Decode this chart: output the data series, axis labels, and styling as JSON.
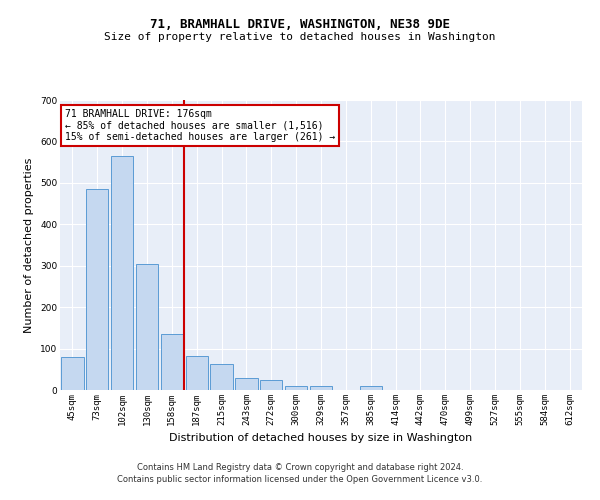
{
  "title": "71, BRAMHALL DRIVE, WASHINGTON, NE38 9DE",
  "subtitle": "Size of property relative to detached houses in Washington",
  "xlabel": "Distribution of detached houses by size in Washington",
  "ylabel": "Number of detached properties",
  "categories": [
    "45sqm",
    "73sqm",
    "102sqm",
    "130sqm",
    "158sqm",
    "187sqm",
    "215sqm",
    "243sqm",
    "272sqm",
    "300sqm",
    "329sqm",
    "357sqm",
    "385sqm",
    "414sqm",
    "442sqm",
    "470sqm",
    "499sqm",
    "527sqm",
    "555sqm",
    "584sqm",
    "612sqm"
  ],
  "values": [
    80,
    485,
    565,
    305,
    135,
    83,
    62,
    30,
    25,
    10,
    10,
    0,
    10,
    0,
    0,
    0,
    0,
    0,
    0,
    0,
    0
  ],
  "bar_color": "#c5d8f0",
  "bar_edge_color": "#5b9bd5",
  "vline_color": "#cc0000",
  "annotation_text": "71 BRAMHALL DRIVE: 176sqm\n← 85% of detached houses are smaller (1,516)\n15% of semi-detached houses are larger (261) →",
  "annotation_box_color": "#ffffff",
  "annotation_box_edge": "#cc0000",
  "ylim": [
    0,
    700
  ],
  "yticks": [
    0,
    100,
    200,
    300,
    400,
    500,
    600,
    700
  ],
  "footer_line1": "Contains HM Land Registry data © Crown copyright and database right 2024.",
  "footer_line2": "Contains public sector information licensed under the Open Government Licence v3.0.",
  "bg_color": "#e8eef8",
  "title_fontsize": 9,
  "subtitle_fontsize": 8,
  "ylabel_fontsize": 8,
  "xlabel_fontsize": 8,
  "tick_fontsize": 6.5,
  "annot_fontsize": 7,
  "footer_fontsize": 6
}
